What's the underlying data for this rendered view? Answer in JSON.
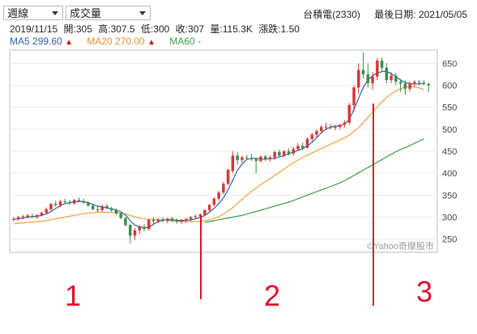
{
  "header": {
    "period_select": "週線",
    "indicator_select": "成交量",
    "stock": "台積電(2330)",
    "last_date_label": "最後日期:",
    "last_date": "2021/05/05"
  },
  "info": {
    "date": "2019/11/15",
    "open_label": "開:",
    "open": "305",
    "high_label": "高:",
    "high": "307.5",
    "low_label": "低:",
    "low": "300",
    "close_label": "收:",
    "close": "307",
    "volume_label": "量:",
    "volume": "115.3K",
    "change_label": "漲跌:",
    "change": "1.50"
  },
  "ma_legend": {
    "ma5_label": "MA5",
    "ma5_value": "299.60",
    "ma5_arrow": "▲",
    "ma20_label": "MA20",
    "ma20_value": "270.00",
    "ma20_arrow": "▲",
    "ma60_label": "MA60",
    "ma60_value": "-"
  },
  "colors": {
    "ma5": "#2a5fa8",
    "ma20": "#f0a040",
    "ma60": "#3a9a4a",
    "up": "#d63535",
    "down": "#3a8a48",
    "marker": "#e0102a"
  },
  "watermark": "©Yahoo奇摩股市",
  "annotations": [
    "1",
    "2",
    "3"
  ],
  "chart_data": {
    "type": "candlestick",
    "ylim": [
      220,
      680
    ],
    "y_ticks": [
      250,
      300,
      350,
      400,
      450,
      500,
      550,
      600,
      650
    ],
    "candles": [
      {
        "o": 294,
        "h": 300,
        "l": 290,
        "c": 296
      },
      {
        "o": 296,
        "h": 303,
        "l": 292,
        "c": 300
      },
      {
        "o": 300,
        "h": 305,
        "l": 295,
        "c": 302
      },
      {
        "o": 301,
        "h": 307,
        "l": 297,
        "c": 304
      },
      {
        "o": 303,
        "h": 308,
        "l": 298,
        "c": 300
      },
      {
        "o": 300,
        "h": 306,
        "l": 296,
        "c": 305
      },
      {
        "o": 305,
        "h": 312,
        "l": 302,
        "c": 310
      },
      {
        "o": 310,
        "h": 322,
        "l": 306,
        "c": 318
      },
      {
        "o": 318,
        "h": 332,
        "l": 315,
        "c": 330
      },
      {
        "o": 330,
        "h": 337,
        "l": 324,
        "c": 327
      },
      {
        "o": 327,
        "h": 340,
        "l": 322,
        "c": 336
      },
      {
        "o": 336,
        "h": 342,
        "l": 330,
        "c": 334
      },
      {
        "o": 334,
        "h": 339,
        "l": 327,
        "c": 331
      },
      {
        "o": 331,
        "h": 341,
        "l": 328,
        "c": 339
      },
      {
        "o": 339,
        "h": 345,
        "l": 334,
        "c": 337
      },
      {
        "o": 337,
        "h": 342,
        "l": 330,
        "c": 333
      },
      {
        "o": 333,
        "h": 336,
        "l": 324,
        "c": 326
      },
      {
        "o": 326,
        "h": 330,
        "l": 316,
        "c": 318
      },
      {
        "o": 318,
        "h": 324,
        "l": 312,
        "c": 316
      },
      {
        "o": 316,
        "h": 328,
        "l": 312,
        "c": 325
      },
      {
        "o": 325,
        "h": 330,
        "l": 318,
        "c": 320
      },
      {
        "o": 320,
        "h": 324,
        "l": 312,
        "c": 316
      },
      {
        "o": 316,
        "h": 320,
        "l": 305,
        "c": 308
      },
      {
        "o": 308,
        "h": 312,
        "l": 295,
        "c": 298
      },
      {
        "o": 298,
        "h": 300,
        "l": 278,
        "c": 282
      },
      {
        "o": 282,
        "h": 285,
        "l": 240,
        "c": 258
      },
      {
        "o": 258,
        "h": 275,
        "l": 248,
        "c": 270
      },
      {
        "o": 270,
        "h": 282,
        "l": 262,
        "c": 278
      },
      {
        "o": 278,
        "h": 284,
        "l": 268,
        "c": 273
      },
      {
        "o": 273,
        "h": 296,
        "l": 270,
        "c": 294
      },
      {
        "o": 294,
        "h": 300,
        "l": 285,
        "c": 291
      },
      {
        "o": 291,
        "h": 298,
        "l": 286,
        "c": 295
      },
      {
        "o": 295,
        "h": 300,
        "l": 288,
        "c": 292
      },
      {
        "o": 292,
        "h": 298,
        "l": 286,
        "c": 297
      },
      {
        "o": 297,
        "h": 300,
        "l": 289,
        "c": 292
      },
      {
        "o": 292,
        "h": 297,
        "l": 285,
        "c": 290
      },
      {
        "o": 290,
        "h": 296,
        "l": 284,
        "c": 294
      },
      {
        "o": 294,
        "h": 298,
        "l": 288,
        "c": 296
      },
      {
        "o": 296,
        "h": 302,
        "l": 290,
        "c": 300
      },
      {
        "o": 300,
        "h": 306,
        "l": 296,
        "c": 302
      },
      {
        "o": 302,
        "h": 308,
        "l": 298,
        "c": 305
      },
      {
        "o": 305,
        "h": 318,
        "l": 302,
        "c": 316
      },
      {
        "o": 316,
        "h": 330,
        "l": 312,
        "c": 328
      },
      {
        "o": 328,
        "h": 345,
        "l": 324,
        "c": 342
      },
      {
        "o": 342,
        "h": 360,
        "l": 338,
        "c": 356
      },
      {
        "o": 356,
        "h": 380,
        "l": 352,
        "c": 376
      },
      {
        "o": 376,
        "h": 410,
        "l": 372,
        "c": 408
      },
      {
        "o": 405,
        "h": 450,
        "l": 400,
        "c": 440
      },
      {
        "o": 440,
        "h": 448,
        "l": 420,
        "c": 430
      },
      {
        "o": 430,
        "h": 440,
        "l": 424,
        "c": 436
      },
      {
        "o": 436,
        "h": 442,
        "l": 430,
        "c": 434
      },
      {
        "o": 434,
        "h": 444,
        "l": 428,
        "c": 432
      },
      {
        "o": 432,
        "h": 436,
        "l": 400,
        "c": 428
      },
      {
        "o": 428,
        "h": 440,
        "l": 424,
        "c": 438
      },
      {
        "o": 438,
        "h": 442,
        "l": 428,
        "c": 432
      },
      {
        "o": 432,
        "h": 440,
        "l": 426,
        "c": 436
      },
      {
        "o": 436,
        "h": 452,
        "l": 430,
        "c": 448
      },
      {
        "o": 448,
        "h": 454,
        "l": 436,
        "c": 440
      },
      {
        "o": 440,
        "h": 452,
        "l": 436,
        "c": 450
      },
      {
        "o": 450,
        "h": 456,
        "l": 440,
        "c": 445
      },
      {
        "o": 445,
        "h": 460,
        "l": 440,
        "c": 455
      },
      {
        "o": 455,
        "h": 468,
        "l": 450,
        "c": 462
      },
      {
        "o": 462,
        "h": 470,
        "l": 452,
        "c": 458
      },
      {
        "o": 458,
        "h": 482,
        "l": 456,
        "c": 478
      },
      {
        "o": 478,
        "h": 492,
        "l": 472,
        "c": 488
      },
      {
        "o": 488,
        "h": 500,
        "l": 480,
        "c": 496
      },
      {
        "o": 496,
        "h": 510,
        "l": 490,
        "c": 505
      },
      {
        "o": 505,
        "h": 515,
        "l": 498,
        "c": 506
      },
      {
        "o": 506,
        "h": 512,
        "l": 500,
        "c": 503
      },
      {
        "o": 503,
        "h": 510,
        "l": 498,
        "c": 505
      },
      {
        "o": 505,
        "h": 512,
        "l": 500,
        "c": 510
      },
      {
        "o": 510,
        "h": 520,
        "l": 504,
        "c": 515
      },
      {
        "o": 515,
        "h": 560,
        "l": 510,
        "c": 555
      },
      {
        "o": 555,
        "h": 600,
        "l": 540,
        "c": 595
      },
      {
        "o": 595,
        "h": 650,
        "l": 580,
        "c": 635
      },
      {
        "o": 635,
        "h": 675,
        "l": 615,
        "c": 625
      },
      {
        "o": 625,
        "h": 650,
        "l": 595,
        "c": 605
      },
      {
        "o": 605,
        "h": 630,
        "l": 590,
        "c": 620
      },
      {
        "o": 620,
        "h": 662,
        "l": 612,
        "c": 656
      },
      {
        "o": 656,
        "h": 664,
        "l": 630,
        "c": 640
      },
      {
        "o": 640,
        "h": 650,
        "l": 605,
        "c": 612
      },
      {
        "o": 612,
        "h": 630,
        "l": 605,
        "c": 622
      },
      {
        "o": 622,
        "h": 628,
        "l": 600,
        "c": 608
      },
      {
        "o": 608,
        "h": 615,
        "l": 585,
        "c": 604
      },
      {
        "o": 604,
        "h": 612,
        "l": 578,
        "c": 592
      },
      {
        "o": 592,
        "h": 608,
        "l": 586,
        "c": 605
      },
      {
        "o": 605,
        "h": 612,
        "l": 596,
        "c": 608
      },
      {
        "o": 608,
        "h": 612,
        "l": 600,
        "c": 606
      },
      {
        "o": 606,
        "h": 612,
        "l": 600,
        "c": 603
      },
      {
        "o": 603,
        "h": 606,
        "l": 584,
        "c": 600
      }
    ],
    "ma5": [
      295,
      296,
      298,
      300,
      301,
      302,
      304,
      307,
      313,
      320,
      326,
      331,
      333,
      335,
      336,
      335,
      333,
      329,
      325,
      323,
      321,
      319,
      316,
      312,
      305,
      292,
      282,
      278,
      276,
      277,
      284,
      290,
      293,
      294,
      294,
      293,
      292,
      293,
      294,
      296,
      299,
      304,
      311,
      320,
      331,
      344,
      362,
      384,
      406,
      421,
      431,
      434,
      434,
      432,
      432,
      433,
      434,
      437,
      440,
      444,
      448,
      452,
      456,
      462,
      470,
      481,
      492,
      500,
      505,
      507,
      508,
      512,
      522,
      545,
      570,
      595,
      612,
      622,
      628,
      631,
      632,
      626,
      620,
      612,
      606,
      604,
      603,
      603,
      604
    ],
    "ma20": [
      285,
      286,
      287,
      288,
      289,
      290,
      291,
      292,
      294,
      296,
      298,
      300,
      302,
      304,
      306,
      308,
      309,
      310,
      311,
      311,
      311,
      311,
      310,
      309,
      307,
      304,
      301,
      298,
      296,
      295,
      295,
      294,
      294,
      293,
      292,
      291,
      290,
      290,
      290,
      290,
      291,
      292,
      294,
      297,
      301,
      307,
      314,
      322,
      331,
      341,
      350,
      358,
      366,
      374,
      381,
      388,
      395,
      402,
      409,
      417,
      424,
      430,
      436,
      441,
      446,
      451,
      456,
      461,
      466,
      471,
      476,
      481,
      487,
      495,
      504,
      515,
      527,
      539,
      551,
      562,
      572,
      580,
      587,
      592,
      596,
      598,
      596,
      594,
      590
    ],
    "ma60": [
      null,
      null,
      null,
      null,
      null,
      null,
      null,
      null,
      null,
      null,
      null,
      null,
      null,
      null,
      null,
      null,
      null,
      null,
      null,
      null,
      null,
      null,
      null,
      null,
      null,
      null,
      null,
      null,
      null,
      null,
      null,
      null,
      null,
      null,
      null,
      null,
      null,
      null,
      null,
      null,
      null,
      288,
      290,
      292,
      294,
      296,
      298,
      300,
      302,
      304,
      307,
      310,
      313,
      316,
      319,
      322,
      325,
      328,
      331,
      334,
      338,
      342,
      346,
      350,
      354,
      358,
      362,
      366,
      370,
      374,
      378,
      383,
      389,
      395,
      401,
      407,
      413,
      419,
      425,
      431,
      437,
      443,
      449,
      454,
      458,
      463,
      468,
      473,
      478
    ]
  }
}
